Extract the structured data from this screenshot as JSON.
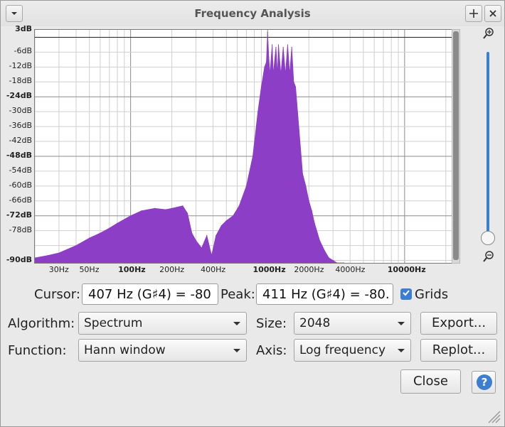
{
  "window": {
    "title": "Frequency Analysis"
  },
  "titlebar_icons": {
    "menu": "chevron-down-icon",
    "pin": "move-icon",
    "close": "close-icon"
  },
  "chart_data": {
    "type": "area",
    "x_scale": "log",
    "xlim": [
      20,
      22050
    ],
    "ylim": [
      -91,
      3
    ],
    "grid": true,
    "color": "#8c3fc6",
    "y_ticks": [
      "3dB",
      "-6dB",
      "-12dB",
      "-18dB",
      "-24dB",
      "-30dB",
      "-36dB",
      "-42dB",
      "-48dB",
      "-54dB",
      "-60dB",
      "-66dB",
      "-72dB",
      "-78dB",
      "-90dB"
    ],
    "x_ticks": [
      "30Hz",
      "50Hz",
      "100Hz",
      "200Hz",
      "400Hz",
      "1000Hz",
      "2000Hz",
      "4000Hz",
      "10000Hz"
    ],
    "x": [
      20,
      25,
      30,
      40,
      50,
      60,
      70,
      80,
      100,
      120,
      150,
      180,
      200,
      240,
      260,
      280,
      300,
      330,
      360,
      390,
      420,
      460,
      500,
      560,
      620,
      700,
      780,
      850,
      900,
      950,
      980,
      1000,
      1020,
      1040,
      1080,
      1100,
      1150,
      1180,
      1200,
      1250,
      1300,
      1350,
      1400,
      1450,
      1500,
      1550,
      1600,
      1700,
      1800,
      1900,
      2000,
      2100,
      2200,
      2400,
      2600,
      2800,
      3000,
      3200,
      3600
    ],
    "y": [
      -89,
      -88,
      -87,
      -84,
      -81,
      -79,
      -77,
      -75,
      -72,
      -70,
      -69,
      -69.5,
      -69,
      -68,
      -71,
      -79,
      -82,
      -85,
      -80,
      -88,
      -80,
      -76,
      -74,
      -72,
      -68,
      -60,
      -48,
      -30,
      -20,
      -12,
      -10,
      2,
      -8,
      -15,
      -3,
      -15,
      -4,
      -15,
      -3,
      -15,
      -4,
      -15,
      -3,
      -15,
      -4,
      -18,
      -20,
      -38,
      -55,
      -60,
      -66,
      -70,
      -75,
      -82,
      -86,
      -89,
      -90,
      -91,
      -91
    ]
  },
  "cursor": {
    "label": "Cursor:",
    "value": "407 Hz (G♯4) = -80"
  },
  "peak": {
    "label": "Peak:",
    "value": "411 Hz (G♯4) = -80."
  },
  "grids": {
    "label": "Grids",
    "checked": true
  },
  "algorithm": {
    "label": "Algorithm:",
    "value": "Spectrum"
  },
  "size": {
    "label": "Size:",
    "value": "2048"
  },
  "function": {
    "label": "Function:",
    "value": "Hann window"
  },
  "axis": {
    "label": "Axis:",
    "value": "Log frequency"
  },
  "buttons": {
    "export": "Export...",
    "replot": "Replot...",
    "close": "Close",
    "help": "?"
  }
}
